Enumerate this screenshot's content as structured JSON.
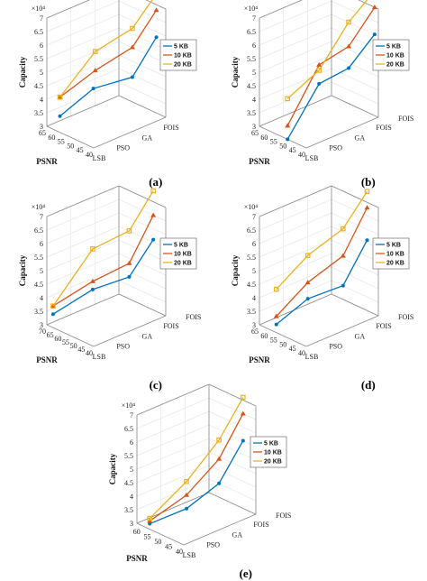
{
  "colors": {
    "5 KB": "#0072BD",
    "10 KB": "#D95319",
    "20 KB": "#EDB120",
    "box": "#888888",
    "grid": "#e6e6e6"
  },
  "chart_data": [
    {
      "type": "line",
      "panel_label": "(a)",
      "x_label": "PSNR",
      "y_label": "Capacity",
      "z_label": "",
      "x_ticks": [
        "40",
        "45",
        "50",
        "55",
        "60",
        "65"
      ],
      "x_range": [
        40,
        65
      ],
      "y_categories": [
        "LSB",
        "PSO",
        "GA",
        "FOIS"
      ],
      "z_exponent_label": "×10⁴",
      "z_ticks": [
        "3",
        "3.5",
        "4",
        "4.5",
        "5",
        "5.5",
        "6",
        "6.5",
        "7"
      ],
      "z_range": [
        3,
        7
      ],
      "legend": [
        "5 KB",
        "10 KB",
        "20 KB"
      ],
      "series": [
        {
          "name": "5 KB",
          "marker": "circle",
          "points": [
            {
              "method": "LSB",
              "psnr": 58,
              "capacity": 3.6
            },
            {
              "method": "PSO",
              "psnr": 53,
              "capacity": 4.4
            },
            {
              "method": "GA",
              "psnr": 45,
              "capacity": 4.7
            },
            {
              "method": "FOIS",
              "psnr": 45,
              "capacity": 5.8
            }
          ]
        },
        {
          "name": "10 KB",
          "marker": "triangle",
          "points": [
            {
              "method": "LSB",
              "psnr": 58,
              "capacity": 4.3
            },
            {
              "method": "PSO",
              "psnr": 52,
              "capacity": 5.1
            },
            {
              "method": "GA",
              "psnr": 45,
              "capacity": 5.8
            },
            {
              "method": "FOIS",
              "psnr": 45,
              "capacity": 6.8
            }
          ]
        },
        {
          "name": "20 KB",
          "marker": "square",
          "points": [
            {
              "method": "LSB",
              "psnr": 58,
              "capacity": 4.3
            },
            {
              "method": "PSO",
              "psnr": 52,
              "capacity": 5.8
            },
            {
              "method": "GA",
              "psnr": 45,
              "capacity": 6.5
            },
            {
              "method": "FOIS",
              "psnr": 45,
              "capacity": 7.4
            }
          ]
        }
      ]
    },
    {
      "type": "line",
      "panel_label": "(b)",
      "x_label": "PSNR",
      "y_label": "Capacity",
      "z_label": "FOIS",
      "x_ticks": [
        "40",
        "45",
        "50",
        "55",
        "60",
        "65"
      ],
      "x_range": [
        40,
        65
      ],
      "y_categories": [
        "LSB",
        "PSO",
        "GA",
        "FOIS"
      ],
      "z_exponent_label": "×10⁴",
      "z_ticks": [
        "3",
        "3.5",
        "4",
        "4.5",
        "5",
        "5.5",
        "6",
        "6.5",
        "7"
      ],
      "z_range": [
        3,
        7
      ],
      "legend": [
        "5 KB",
        "10 KB",
        "20 KB"
      ],
      "series": [
        {
          "name": "5 KB",
          "marker": "circle",
          "points": [
            {
              "method": "LSB",
              "psnr": 50,
              "capacity": 3.0
            },
            {
              "method": "PSO",
              "psnr": 46,
              "capacity": 4.8
            },
            {
              "method": "GA",
              "psnr": 43,
              "capacity": 5.1
            },
            {
              "method": "FOIS",
              "psnr": 42,
              "capacity": 6.0
            }
          ]
        },
        {
          "name": "10 KB",
          "marker": "triangle",
          "points": [
            {
              "method": "LSB",
              "psnr": 50,
              "capacity": 3.5
            },
            {
              "method": "PSO",
              "psnr": 46,
              "capacity": 5.5
            },
            {
              "method": "GA",
              "psnr": 43,
              "capacity": 5.9
            },
            {
              "method": "FOIS",
              "psnr": 42,
              "capacity": 7.0
            }
          ]
        },
        {
          "name": "20 KB",
          "marker": "square",
          "points": [
            {
              "method": "LSB",
              "psnr": 50,
              "capacity": 4.5
            },
            {
              "method": "PSO",
              "psnr": 46,
              "capacity": 5.3
            },
            {
              "method": "GA",
              "psnr": 43,
              "capacity": 6.8
            },
            {
              "method": "FOIS",
              "psnr": 42,
              "capacity": 7.6
            }
          ]
        }
      ]
    },
    {
      "type": "line",
      "panel_label": "(c)",
      "x_label": "PSNR",
      "y_label": "Capacity",
      "z_label": "FOIS",
      "x_ticks": [
        "40",
        "45",
        "50",
        "55",
        "60",
        "65",
        "70"
      ],
      "x_range": [
        40,
        70
      ],
      "y_categories": [
        "LSB",
        "PSO",
        "GA",
        "FOIS"
      ],
      "z_exponent_label": "×10⁴",
      "z_ticks": [
        "3",
        "3.5",
        "4",
        "4.5",
        "5",
        "5.5",
        "6",
        "6.5",
        "7"
      ],
      "z_range": [
        3,
        7
      ],
      "legend": [
        "5 KB",
        "10 KB",
        "20 KB"
      ],
      "series": [
        {
          "name": "5 KB",
          "marker": "circle",
          "points": [
            {
              "method": "LSB",
              "psnr": 66,
              "capacity": 3.5
            },
            {
              "method": "PSO",
              "psnr": 56,
              "capacity": 4.3
            },
            {
              "method": "GA",
              "psnr": 48,
              "capacity": 4.6
            },
            {
              "method": "FOIS",
              "psnr": 48,
              "capacity": 5.6
            }
          ]
        },
        {
          "name": "10 KB",
          "marker": "triangle",
          "points": [
            {
              "method": "LSB",
              "psnr": 66,
              "capacity": 3.8
            },
            {
              "method": "PSO",
              "psnr": 56,
              "capacity": 4.6
            },
            {
              "method": "GA",
              "psnr": 48,
              "capacity": 5.1
            },
            {
              "method": "FOIS",
              "psnr": 48,
              "capacity": 6.5
            }
          ]
        },
        {
          "name": "20 KB",
          "marker": "square",
          "points": [
            {
              "method": "LSB",
              "psnr": 66,
              "capacity": 3.8
            },
            {
              "method": "PSO",
              "psnr": 56,
              "capacity": 5.8
            },
            {
              "method": "GA",
              "psnr": 48,
              "capacity": 6.3
            },
            {
              "method": "FOIS",
              "psnr": 48,
              "capacity": 7.4
            }
          ]
        }
      ]
    },
    {
      "type": "line",
      "panel_label": "(d)",
      "x_label": "PSNR",
      "y_label": "Capacity",
      "z_label": "FOIS",
      "x_ticks": [
        "40",
        "45",
        "50",
        "55",
        "60",
        "65"
      ],
      "x_range": [
        40,
        65
      ],
      "y_categories": [
        "LSB",
        "PSO",
        "GA",
        "FOIS"
      ],
      "z_exponent_label": "×10⁴",
      "z_ticks": [
        "3",
        "3.5",
        "4",
        "4.5",
        "5",
        "5.5",
        "6",
        "6.5",
        "7"
      ],
      "z_range": [
        3,
        7
      ],
      "legend": [
        "5 KB",
        "10 KB",
        "20 KB"
      ],
      "series": [
        {
          "name": "5 KB",
          "marker": "circle",
          "points": [
            {
              "method": "LSB",
              "psnr": 56,
              "capacity": 3.3
            },
            {
              "method": "PSO",
              "psnr": 52,
              "capacity": 4.0
            },
            {
              "method": "GA",
              "psnr": 46,
              "capacity": 4.3
            },
            {
              "method": "FOIS",
              "psnr": 46,
              "capacity": 5.6
            }
          ]
        },
        {
          "name": "10 KB",
          "marker": "triangle",
          "points": [
            {
              "method": "LSB",
              "psnr": 56,
              "capacity": 3.6
            },
            {
              "method": "PSO",
              "psnr": 52,
              "capacity": 4.6
            },
            {
              "method": "GA",
              "psnr": 46,
              "capacity": 5.4
            },
            {
              "method": "FOIS",
              "psnr": 46,
              "capacity": 6.8
            }
          ]
        },
        {
          "name": "20 KB",
          "marker": "square",
          "points": [
            {
              "method": "LSB",
              "psnr": 56,
              "capacity": 4.6
            },
            {
              "method": "PSO",
              "psnr": 52,
              "capacity": 5.6
            },
            {
              "method": "GA",
              "psnr": 46,
              "capacity": 6.4
            },
            {
              "method": "FOIS",
              "psnr": 46,
              "capacity": 7.4
            }
          ]
        }
      ]
    },
    {
      "type": "line",
      "panel_label": "(e)",
      "x_label": "PSNR",
      "y_label": "Capacity",
      "z_label": "FOIS",
      "x_ticks": [
        "40",
        "45",
        "50",
        "55",
        "60"
      ],
      "x_range": [
        40,
        62
      ],
      "y_categories": [
        "LSB",
        "PSO",
        "GA",
        "FOIS"
      ],
      "z_exponent_label": "×10⁴",
      "z_ticks": [
        "3",
        "3.5",
        "4",
        "4.5",
        "5",
        "5.5",
        "6",
        "6.5",
        "7"
      ],
      "z_range": [
        3,
        7
      ],
      "legend": [
        "5 KB",
        "10 KB",
        "20 KB"
      ],
      "series": [
        {
          "name": "5 KB",
          "marker": "circle",
          "points": [
            {
              "method": "LSB",
              "psnr": 56,
              "capacity": 3.2
            },
            {
              "method": "PSO",
              "psnr": 50,
              "capacity": 3.6
            },
            {
              "method": "GA",
              "psnr": 46,
              "capacity": 4.3
            },
            {
              "method": "FOIS",
              "psnr": 46,
              "capacity": 5.5
            }
          ]
        },
        {
          "name": "10 KB",
          "marker": "triangle",
          "points": [
            {
              "method": "LSB",
              "psnr": 56,
              "capacity": 3.3
            },
            {
              "method": "PSO",
              "psnr": 50,
              "capacity": 4.1
            },
            {
              "method": "GA",
              "psnr": 46,
              "capacity": 5.2
            },
            {
              "method": "FOIS",
              "psnr": 46,
              "capacity": 6.5
            }
          ]
        },
        {
          "name": "20 KB",
          "marker": "square",
          "points": [
            {
              "method": "LSB",
              "psnr": 56,
              "capacity": 3.4
            },
            {
              "method": "PSO",
              "psnr": 50,
              "capacity": 4.6
            },
            {
              "method": "GA",
              "psnr": 46,
              "capacity": 5.9
            },
            {
              "method": "FOIS",
              "psnr": 46,
              "capacity": 7.1
            }
          ]
        }
      ]
    }
  ]
}
